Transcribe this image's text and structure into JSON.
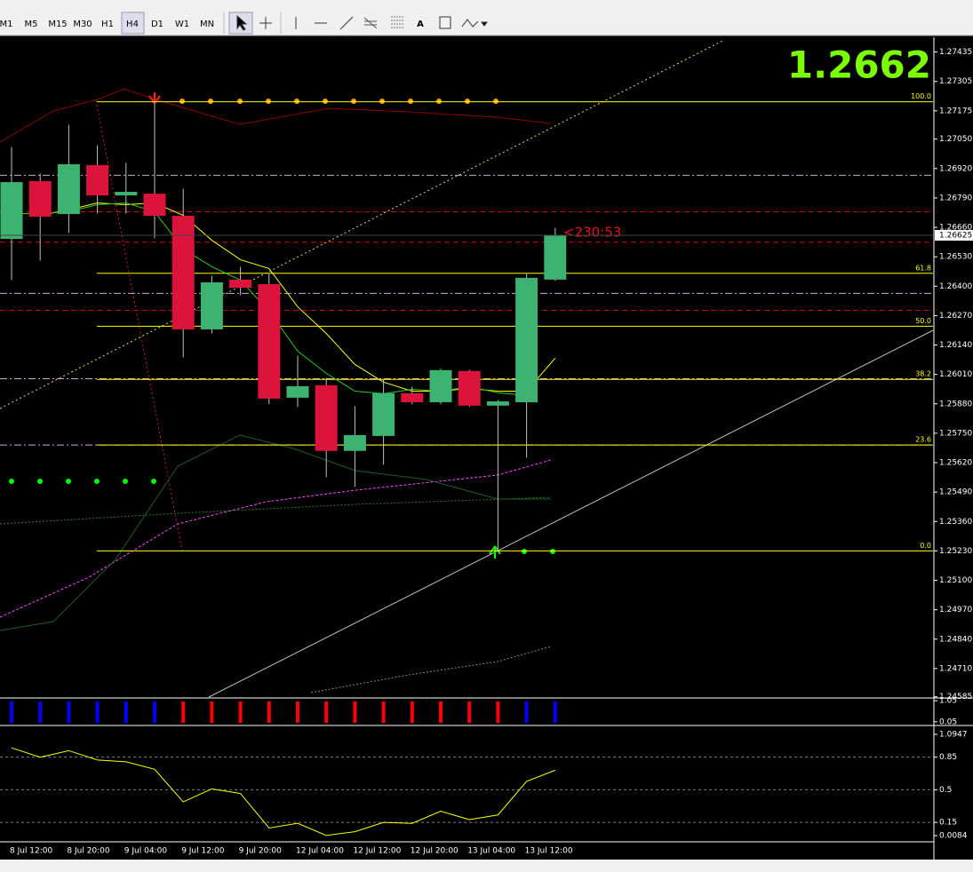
{
  "toolbar": {
    "timeframes": [
      "M1",
      "M5",
      "M15",
      "M30",
      "H1",
      "H4",
      "D1",
      "W1",
      "MN"
    ],
    "active": "H4",
    "text_tool": "A"
  },
  "chart_data": [
    {
      "type": "candlestick",
      "title": "1.2662",
      "countdown": "<230:53",
      "categories": [
        "8 Jul 12:00",
        null,
        "8 Jul 20:00",
        null,
        "9 Jul 04:00",
        null,
        "9 Jul 12:00",
        null,
        "9 Jul 20:00",
        null,
        "12 Jul 04:00",
        null,
        "12 Jul 12:00",
        null,
        "12 Jul 20:00",
        null,
        "13 Jul 04:00",
        null,
        "13 Jul 12:00",
        null
      ],
      "open": [
        1.26611,
        1.26862,
        1.26721,
        1.26933,
        1.26803,
        1.26807,
        1.26709,
        1.26211,
        1.26427,
        1.26407,
        1.25909,
        1.2596,
        1.25674,
        1.2574,
        1.25925,
        1.25889,
        1.26023,
        1.25874,
        1.25889,
        1.26431
      ],
      "high": [
        1.27015,
        1.26898,
        1.27113,
        1.27023,
        1.26945,
        1.27211,
        1.26831,
        1.26446,
        1.26485,
        1.26454,
        1.26093,
        1.25995,
        1.2587,
        1.25987,
        1.25956,
        1.26035,
        1.26031,
        1.25897,
        1.26454,
        1.26658
      ],
      "low": [
        1.26427,
        1.26513,
        1.26635,
        1.26721,
        1.26721,
        1.26611,
        1.26085,
        1.26191,
        1.2636,
        1.25878,
        1.25866,
        1.25556,
        1.25513,
        1.25611,
        1.25878,
        1.25878,
        1.25866,
        1.2523,
        1.25642,
        1.26423
      ],
      "close": [
        1.26858,
        1.26709,
        1.26937,
        1.26803,
        1.26815,
        1.26713,
        1.26211,
        1.26415,
        1.26395,
        1.25905,
        1.25956,
        1.25674,
        1.2574,
        1.25925,
        1.25889,
        1.26027,
        1.25874,
        1.25889,
        1.26435,
        1.26625
      ],
      "up_color": "#3cb371",
      "down_color": "#dc143c",
      "ylim": [
        1.2458,
        1.275
      ],
      "yticks": [
        1.27435,
        1.27305,
        1.27175,
        {
          "value": 1.2705,
          "label": "1.27050"
        },
        {
          "value": 1.2692,
          "label": "1.26920"
        },
        {
          "value": 1.2679,
          "label": "1.26790"
        },
        {
          "value": 1.2666,
          "label": "1.26660"
        },
        {
          "value": 1.2653,
          "label": "1.26530"
        },
        {
          "value": 1.264,
          "label": "1.26400"
        },
        {
          "value": 1.2627,
          "label": "1.26270"
        },
        {
          "value": 1.2614,
          "label": "1.26140"
        },
        {
          "value": 1.2601,
          "label": "1.26010"
        },
        {
          "value": 1.2588,
          "label": "1.25880"
        },
        {
          "value": 1.2575,
          "label": "1.25750"
        },
        {
          "value": 1.2562,
          "label": "1.25620"
        },
        {
          "value": 1.2549,
          "label": "1.25490"
        },
        {
          "value": 1.2536,
          "label": "1.25360"
        },
        {
          "value": 1.2523,
          "label": "1.25230"
        },
        {
          "value": 1.251,
          "label": "1.25100"
        },
        {
          "value": 1.2497,
          "label": "1.24970"
        },
        {
          "value": 1.2484,
          "label": "1.24840"
        },
        {
          "value": 1.2471,
          "label": "1.24710"
        },
        1.24585
      ],
      "current_price": 1.26625,
      "fib": [
        {
          "label": "100.0",
          "price": 1.27215
        },
        {
          "label": "61.8",
          "price": 1.26457
        },
        {
          "label": "50.0",
          "price": 1.26223
        },
        {
          "label": "38.2",
          "price": 1.25988
        },
        {
          "label": "23.6",
          "price": 1.25698
        },
        {
          "label": "0.0",
          "price": 1.2523
        }
      ],
      "fib_color": "#ffff00",
      "levels": [
        {
          "price": 1.2689,
          "color": "#d8a0e8",
          "dash": "8 3 2 3"
        },
        {
          "price": 1.26368,
          "color": "#d8a0e8",
          "dash": "8 3 2 3"
        },
        {
          "price": 1.25991,
          "color": "#d8a0e8",
          "dash": "8 3 2 3"
        },
        {
          "price": 1.25698,
          "color": "#d8a0e8",
          "dash": "8 3 2 3"
        },
        {
          "price": 1.26729,
          "color": "#cc0000",
          "dash": "6 4"
        },
        {
          "price": 1.26595,
          "color": "#cc0000",
          "dash": "6 4"
        },
        {
          "price": 1.26293,
          "color": "#cc0000",
          "dash": "6 4"
        }
      ],
      "series": [
        {
          "color": "#ffff00",
          "values": [
            null,
            1.26713,
            1.26737,
            1.26768,
            1.2676,
            1.26768,
            1.26713,
            1.26603,
            1.26517,
            1.26478,
            1.26309,
            1.26191,
            1.26054,
            1.25976,
            1.25936,
            1.25936,
            1.25948,
            1.25936,
            1.25936,
            1.26082
          ]
        },
        {
          "color": "#22cc22",
          "values": [
            1.26721,
            1.26721,
            1.26729,
            1.2676,
            1.26768,
            1.26729,
            1.26564,
            1.26486,
            1.26427,
            1.26289,
            1.26113,
            1.26015,
            1.25936,
            1.25925,
            1.25944,
            1.25936,
            1.25956,
            1.25929,
            1.25917,
            null
          ]
        }
      ]
    },
    {
      "type": "signal",
      "ylim": [
        0,
        1.1
      ],
      "yticks": [
        1.05,
        0.05
      ],
      "colors": [
        "#0000ff",
        "#0000ff",
        "#0000ff",
        "#0000ff",
        "#0000ff",
        "#0000ff",
        "#ff0000",
        "#ff0000",
        "#ff0000",
        "#ff0000",
        "#ff0000",
        "#ff0000",
        "#ff0000",
        "#ff0000",
        "#ff0000",
        "#ff0000",
        "#ff0000",
        "#ff0000",
        "#0000ff",
        "#0000ff"
      ]
    },
    {
      "type": "line",
      "ylim": [
        0.0084,
        1.0947
      ],
      "yticks": [
        1.0947,
        0.85,
        0.5,
        0.15,
        0.0084
      ],
      "color": "#ffff00",
      "values": [
        0.95,
        0.85,
        0.92,
        0.82,
        0.8,
        0.72,
        0.37,
        0.51,
        0.46,
        0.09,
        0.14,
        0.01,
        0.05,
        0.15,
        0.14,
        0.27,
        0.18,
        0.23,
        0.59,
        0.71
      ]
    }
  ]
}
